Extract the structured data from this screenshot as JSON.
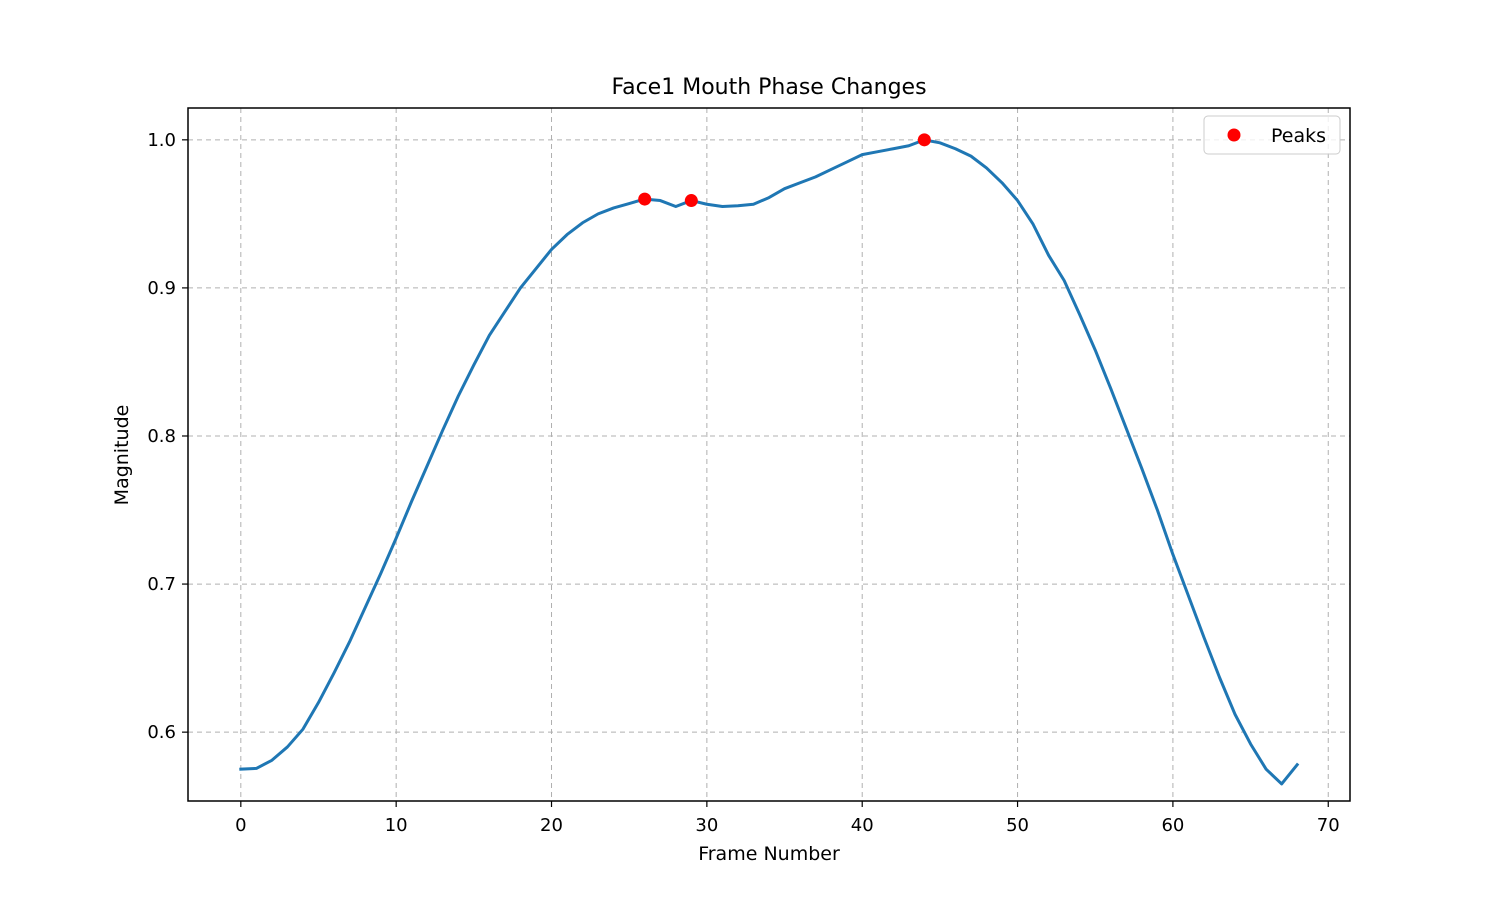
{
  "chart_data": {
    "type": "line",
    "title": "Face1 Mouth Phase Changes",
    "xlabel": "Frame Number",
    "ylabel": "Magnitude",
    "xlim": [
      -3.4,
      71.4
    ],
    "ylim": [
      0.5535,
      1.0215
    ],
    "xticks": [
      0,
      10,
      20,
      30,
      40,
      50,
      60,
      70
    ],
    "yticks": [
      0.6,
      0.7,
      0.8,
      0.9,
      1.0
    ],
    "xtick_labels": [
      "0",
      "10",
      "20",
      "30",
      "40",
      "50",
      "60",
      "70"
    ],
    "ytick_labels": [
      "0.6",
      "0.7",
      "0.8",
      "0.9",
      "1.0"
    ],
    "grid": true,
    "legend_position": "upper right",
    "line_color": "#1f77b4",
    "peak_color": "#ff0000",
    "series": [
      {
        "type": "line",
        "x": [
          0,
          1,
          2,
          3,
          4,
          5,
          6,
          7,
          8,
          9,
          10,
          11,
          12,
          13,
          14,
          15,
          16,
          17,
          18,
          19,
          20,
          21,
          22,
          23,
          24,
          25,
          26,
          27,
          28,
          29,
          30,
          31,
          32,
          33,
          34,
          35,
          36,
          37,
          38,
          39,
          40,
          41,
          42,
          43,
          44,
          45,
          46,
          47,
          48,
          49,
          50,
          51,
          52,
          53,
          54,
          55,
          56,
          57,
          58,
          59,
          60,
          61,
          62,
          63,
          64,
          65,
          66,
          67,
          68
        ],
        "y": [
          0.575,
          0.5755,
          0.581,
          0.59,
          0.602,
          0.62,
          0.64,
          0.661,
          0.684,
          0.707,
          0.731,
          0.756,
          0.78,
          0.804,
          0.827,
          0.848,
          0.868,
          0.884,
          0.9,
          0.913,
          0.926,
          0.936,
          0.944,
          0.95,
          0.954,
          0.957,
          0.96,
          0.959,
          0.955,
          0.959,
          0.9565,
          0.955,
          0.9555,
          0.9565,
          0.961,
          0.967,
          0.971,
          0.975,
          0.98,
          0.985,
          0.99,
          0.992,
          0.994,
          0.996,
          1.0,
          0.998,
          0.994,
          0.989,
          0.981,
          0.971,
          0.959,
          0.943,
          0.922,
          0.905,
          0.882,
          0.858,
          0.832,
          0.805,
          0.778,
          0.75,
          0.72,
          0.692,
          0.664,
          0.637,
          0.612,
          0.592,
          0.575,
          0.565,
          0.578
        ]
      },
      {
        "name": "Peaks",
        "type": "scatter",
        "x": [
          26,
          29,
          44
        ],
        "y": [
          0.96,
          0.959,
          1.0
        ]
      }
    ]
  }
}
